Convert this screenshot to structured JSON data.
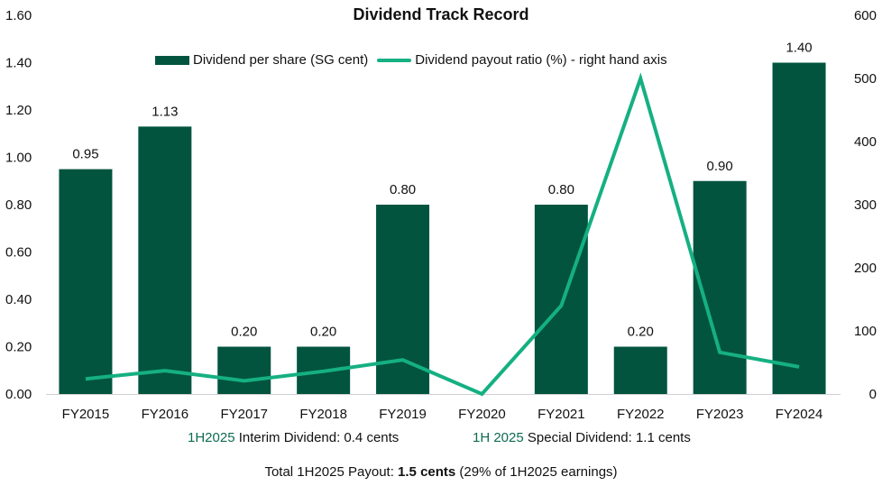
{
  "chart_data": {
    "type": "bar",
    "title": "Dividend Track Record",
    "categories": [
      "FY2015",
      "FY2016",
      "FY2017",
      "FY2018",
      "FY2019",
      "FY2020",
      "FY2021",
      "FY2022",
      "FY2023",
      "FY2024"
    ],
    "series": [
      {
        "name": "Dividend per share (SG cent)",
        "type": "bar",
        "axis": "left",
        "color": "#02543F",
        "values": [
          0.95,
          1.13,
          0.2,
          0.2,
          0.8,
          0,
          0.8,
          0.2,
          0.9,
          1.4
        ],
        "labels": [
          "0.95",
          "1.13",
          "0.20",
          "0.20",
          "0.80",
          "",
          "0.80",
          "0.20",
          "0.90",
          "1.40"
        ]
      },
      {
        "name": "Dividend payout ratio (%) - right hand axis",
        "type": "line",
        "axis": "right",
        "color": "#15B082",
        "values": [
          24,
          37,
          21,
          36,
          54,
          0,
          140,
          500,
          66,
          43
        ]
      }
    ],
    "left_axis": {
      "ticks": [
        "0.00",
        "0.20",
        "0.40",
        "0.60",
        "0.80",
        "1.00",
        "1.20",
        "1.40",
        "1.60"
      ],
      "ylim": [
        0,
        1.6
      ]
    },
    "right_axis": {
      "ticks": [
        "0",
        "100",
        "200",
        "300",
        "400",
        "500",
        "600"
      ],
      "ylim": [
        0,
        600
      ]
    },
    "xlabel": "",
    "ylabel": "",
    "legend_position": "top",
    "grid": false
  },
  "title": "Dividend Track Record",
  "legend": {
    "bar_label": "Dividend per share (SG cent)",
    "line_label": "Dividend payout ratio (%) - right hand axis"
  },
  "notes": {
    "interim_highlight": "1H2025",
    "interim_text": " Interim Dividend: 0.4 cents",
    "special_highlight": "1H 2025",
    "special_text": " Special Dividend: 1.1 cents",
    "total_prefix": "Total 1H2025 Payout: ",
    "total_bold": "1.5 cents",
    "total_suffix": " (29% of 1H2025 earnings)"
  },
  "colors": {
    "bar": "#02543F",
    "line": "#15B082",
    "highlight": "#0E6B52"
  }
}
